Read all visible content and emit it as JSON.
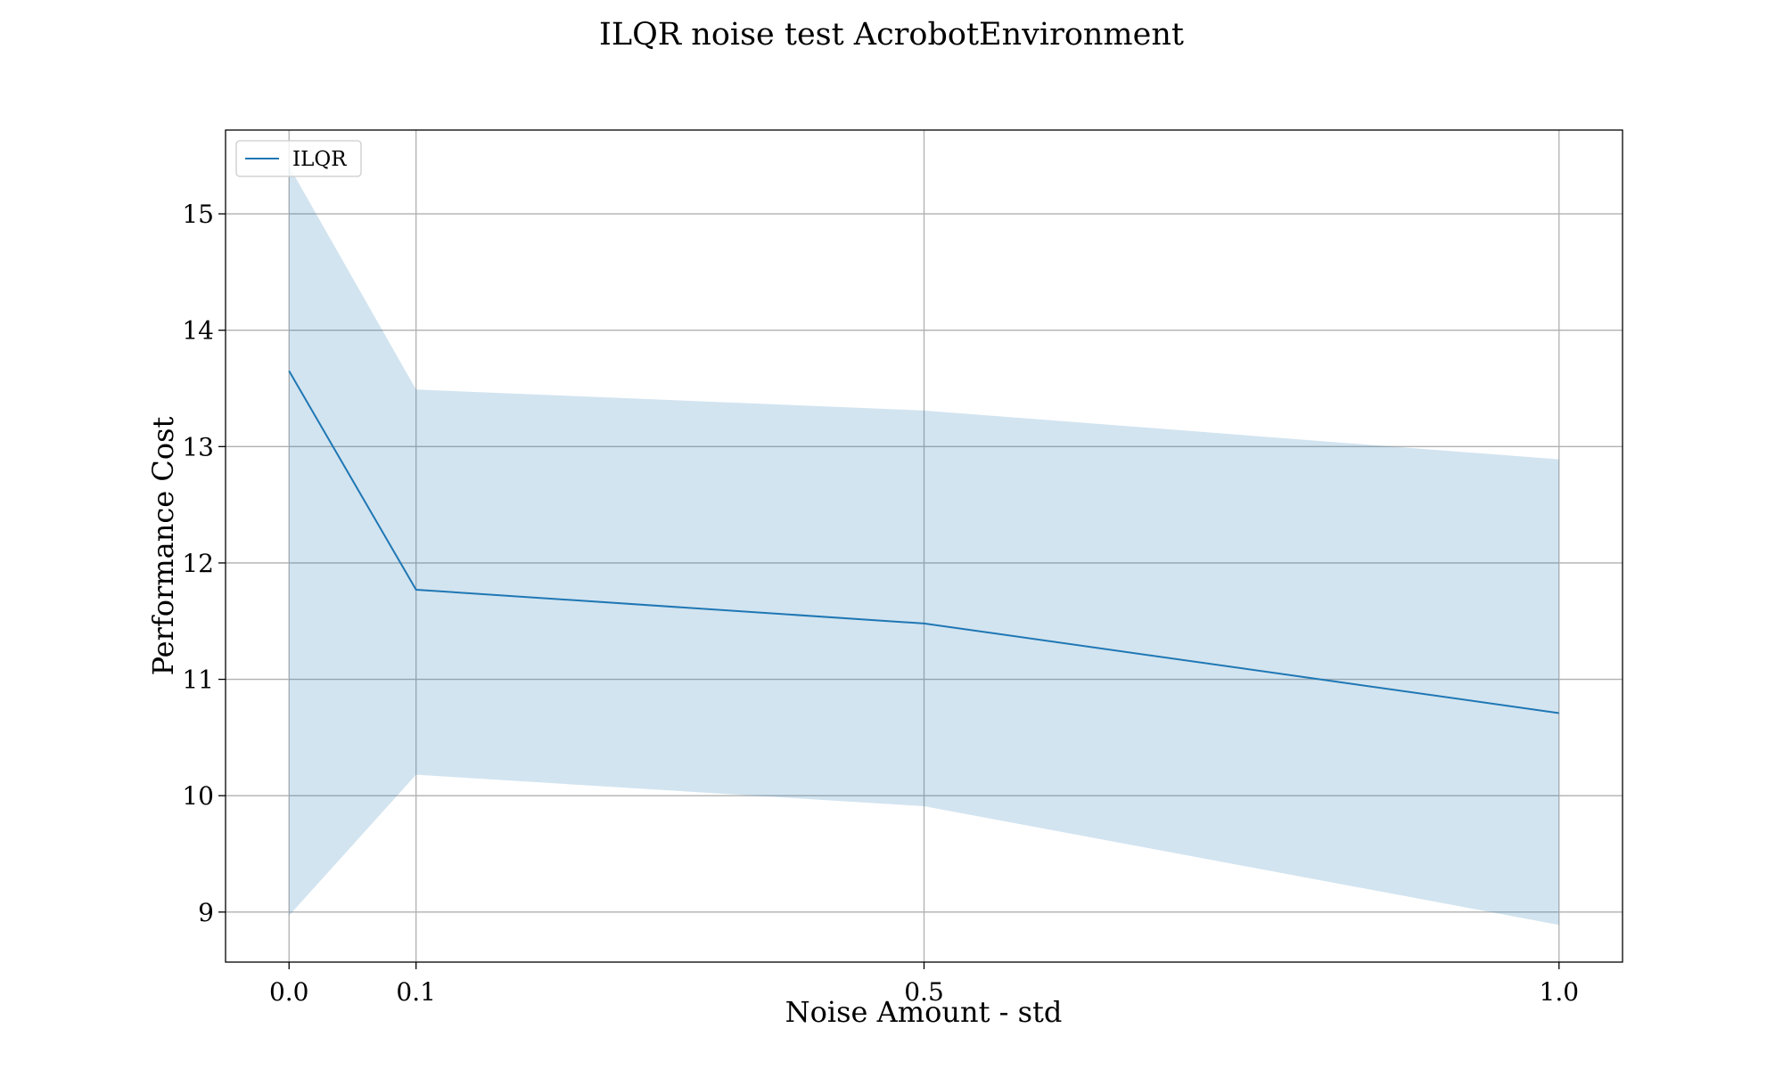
{
  "chart_data": {
    "type": "line",
    "title": "ILQR noise test AcrobotEnvironment",
    "xlabel": "Noise Amount - std",
    "ylabel": "Performance Cost",
    "x": [
      0.0,
      0.1,
      0.5,
      1.0
    ],
    "x_tick_labels": [
      "0.0",
      "0.1",
      "0.5",
      "1.0"
    ],
    "y_ticks": [
      9,
      10,
      11,
      12,
      13,
      14,
      15
    ],
    "y_tick_labels": [
      "9",
      "10",
      "11",
      "12",
      "13",
      "14",
      "15"
    ],
    "xlim": [
      -0.05,
      1.05
    ],
    "ylim": [
      8.57,
      15.72
    ],
    "grid": true,
    "legend_position": "upper-left",
    "series": [
      {
        "name": "ILQR",
        "color": "#1f77b4",
        "values": [
          13.65,
          11.77,
          11.48,
          10.71
        ],
        "band_lower": [
          8.97,
          10.18,
          9.91,
          8.89
        ],
        "band_upper": [
          15.41,
          13.49,
          13.31,
          12.89
        ],
        "band_color": "#1f77b4",
        "band_opacity": 0.2
      }
    ]
  }
}
